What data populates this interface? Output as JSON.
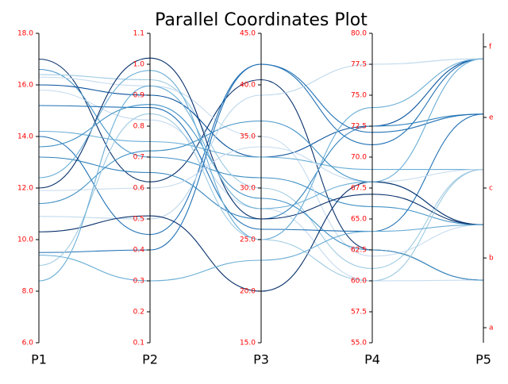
{
  "chart_data": {
    "type": "parallel",
    "title": "Parallel Coordinates Plot",
    "axes": [
      {
        "name": "P1",
        "lim": [
          6,
          18
        ],
        "ticks": [
          {
            "value": 6,
            "label": "6.0"
          },
          {
            "value": 8,
            "label": "8.0"
          },
          {
            "value": 10,
            "label": "10.0"
          },
          {
            "value": 12,
            "label": "12.0"
          },
          {
            "value": 14,
            "label": "14.0"
          },
          {
            "value": 16,
            "label": "16.0"
          },
          {
            "value": 18,
            "label": "18.0"
          }
        ]
      },
      {
        "name": "P2",
        "lim": [
          0.1,
          1.1
        ],
        "ticks": [
          0.1,
          0.2,
          0.3,
          0.4,
          0.5,
          0.6,
          0.7,
          0.8,
          0.9,
          {
            "value": 1,
            "label": "1.0"
          },
          1.1
        ]
      },
      {
        "name": "P3",
        "lim": [
          15,
          45
        ],
        "ticks": [
          {
            "value": 15,
            "label": "15.0"
          },
          {
            "value": 20,
            "label": "20.0"
          },
          {
            "value": 25,
            "label": "25.0"
          },
          {
            "value": 30,
            "label": "30.0"
          },
          {
            "value": 35,
            "label": "35.0"
          },
          {
            "value": 40,
            "label": "40.0"
          },
          {
            "value": 45,
            "label": "45.0"
          }
        ]
      },
      {
        "name": "P4",
        "lim": [
          55,
          80
        ],
        "ticks": [
          {
            "value": 55,
            "label": "55.0"
          },
          57.5,
          {
            "value": 60,
            "label": "60.0"
          },
          62.5,
          {
            "value": 65,
            "label": "65.0"
          },
          67.5,
          {
            "value": 70,
            "label": "70.0"
          },
          72.5,
          {
            "value": 75,
            "label": "75.0"
          },
          77.5,
          {
            "value": 80,
            "label": "80.0"
          }
        ]
      },
      {
        "name": "P5",
        "lim": [
          -0.283,
          1.115
        ],
        "ticks": [
          {
            "value": -0.215,
            "label": "a"
          },
          {
            "value": 0.1,
            "label": "b"
          },
          {
            "value": 0.416,
            "label": "c"
          },
          {
            "value": 0.735,
            "label": "e"
          },
          {
            "value": 1.054,
            "label": "f"
          }
        ]
      }
    ],
    "series": [
      {
        "color": "#08306b",
        "values": [
          17.0,
          0.62,
          40.5,
          62.5,
          0
        ]
      },
      {
        "color": "#4292c6",
        "values": [
          16.6,
          0.7,
          31.0,
          66.0,
          0.25
        ]
      },
      {
        "color": "#9ecae1",
        "values": [
          16.4,
          0.95,
          30.0,
          61.0,
          0.5
        ]
      },
      {
        "color": "#c6dbef",
        "values": [
          16.3,
          0.93,
          35.0,
          62.0,
          0.25
        ]
      },
      {
        "color": "#08519c",
        "values": [
          16.0,
          0.9,
          33.0,
          72.5,
          1.0
        ]
      },
      {
        "color": "#c6dbef",
        "values": [
          15.8,
          0.82,
          28.0,
          60.0,
          0
        ]
      },
      {
        "color": "#2171b5",
        "values": [
          15.2,
          0.86,
          26.0,
          64.0,
          0.75
        ]
      },
      {
        "color": "#6baed6",
        "values": [
          14.2,
          0.75,
          33.0,
          69.0,
          0.5
        ]
      },
      {
        "color": "#2171b5",
        "values": [
          14.0,
          0.45,
          42.0,
          71.0,
          1.0
        ]
      },
      {
        "color": "#4292c6",
        "values": [
          13.6,
          0.87,
          29.0,
          62.5,
          0
        ]
      },
      {
        "color": "#3182bd",
        "values": [
          13.2,
          0.65,
          27.0,
          72.5,
          0.75
        ]
      },
      {
        "color": "#08306b",
        "values": [
          12.0,
          1.02,
          27.0,
          67.0,
          0.25
        ]
      },
      {
        "color": "#6baed6",
        "values": [
          12.4,
          0.98,
          25.0,
          74.0,
          1.0
        ]
      },
      {
        "color": "#c6dbef",
        "values": [
          11.9,
          0.6,
          34.0,
          68.0,
          0.5
        ]
      },
      {
        "color": "#4292c6",
        "values": [
          11.4,
          0.72,
          36.5,
          68.0,
          0.25
        ]
      },
      {
        "color": "#bcd7ea",
        "values": [
          10.9,
          0.5,
          39.0,
          77.5,
          1.0
        ]
      },
      {
        "color": "#08306b",
        "values": [
          10.3,
          0.51,
          20.0,
          68.0,
          0.25
        ]
      },
      {
        "color": "#2171b5",
        "values": [
          9.5,
          0.4,
          42.0,
          72.0,
          0.75
        ]
      },
      {
        "color": "#9ecae1",
        "values": [
          9.0,
          0.84,
          25.0,
          60.0,
          0.5
        ]
      },
      {
        "color": "#6baed6",
        "values": [
          8.4,
          0.93,
          28.0,
          68.0,
          1.0
        ]
      },
      {
        "color": "#6baed6",
        "values": [
          9.4,
          0.3,
          23.0,
          64.0,
          0.25
        ]
      }
    ]
  }
}
